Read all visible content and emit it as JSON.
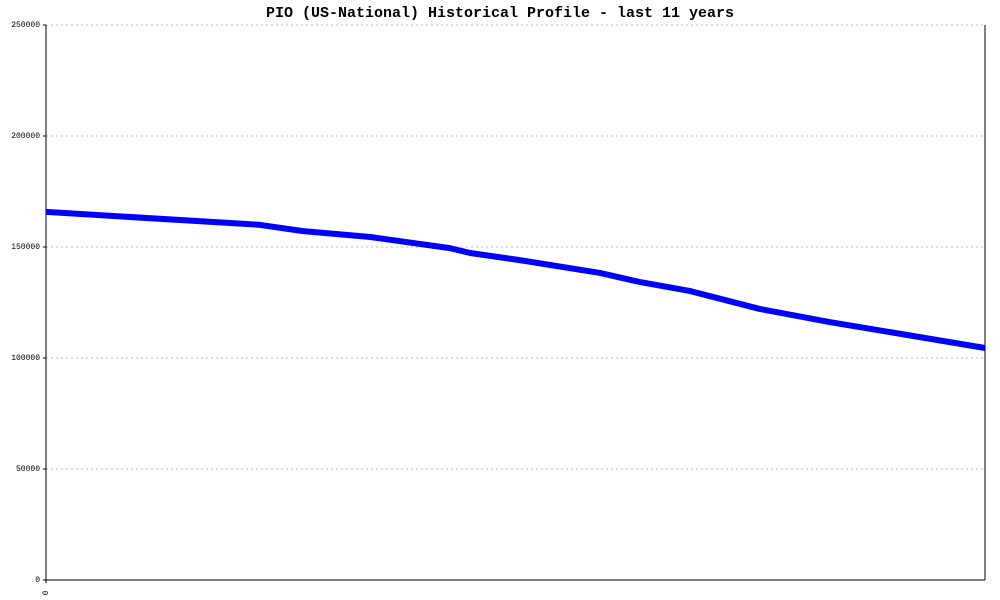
{
  "chart_data": {
    "type": "line",
    "title": "PIO (US-National) Historical Profile - last 11 years",
    "x": [
      0,
      2.5,
      3.0,
      3.8,
      4.73,
      4.97,
      5.55,
      6.49,
      6.96,
      7.54,
      8.36,
      9.18,
      11
    ],
    "series": [
      {
        "name": "PIO",
        "color": "#0000ff",
        "values": [
          165800,
          160000,
          157200,
          154500,
          149500,
          147300,
          144100,
          138300,
          134200,
          130200,
          122100,
          116200,
          104500
        ]
      }
    ],
    "xlim": [
      0,
      11
    ],
    "xticks": [
      0
    ],
    "ylim": [
      0,
      250000
    ],
    "yticks": [
      0,
      50000,
      100000,
      150000,
      200000,
      250000
    ],
    "grid": true
  }
}
